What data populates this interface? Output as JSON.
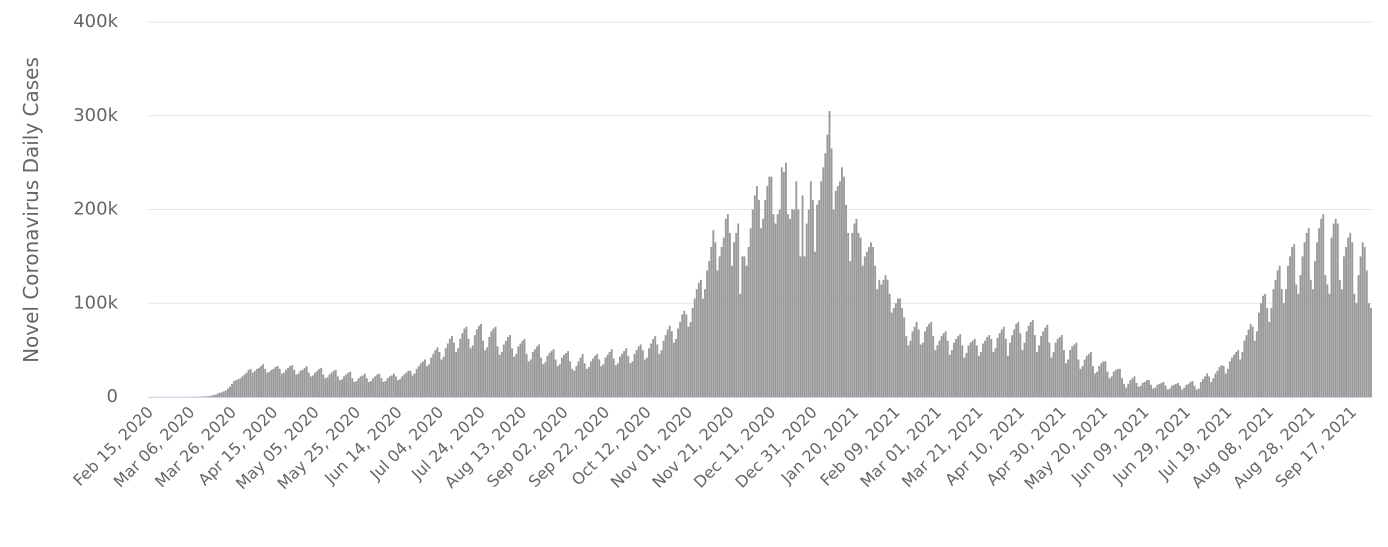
{
  "chart_data": {
    "type": "bar",
    "y_label": "Novel Coronavirus Daily Cases",
    "ylim": [
      0,
      400000
    ],
    "yticks": [
      0,
      {
        "value": 100000,
        "label": "100k"
      },
      {
        "value": 200000,
        "label": "200k"
      },
      {
        "value": 300000,
        "label": "300k"
      },
      {
        "value": 400000,
        "label": "400k"
      }
    ],
    "grid": true,
    "color": "#999999",
    "categories": [
      "Feb 15, 2020",
      null,
      null,
      null,
      null,
      null,
      null,
      null,
      null,
      null,
      null,
      null,
      null,
      null,
      null,
      null,
      null,
      null,
      null,
      null,
      "Mar 06, 2020",
      null,
      null,
      null,
      null,
      null,
      null,
      null,
      null,
      null,
      null,
      null,
      null,
      null,
      null,
      null,
      null,
      null,
      null,
      null,
      "Mar 26, 2020",
      null,
      null,
      null,
      null,
      null,
      null,
      null,
      null,
      null,
      null,
      null,
      null,
      null,
      null,
      null,
      null,
      null,
      null,
      null,
      "Apr 15, 2020",
      null,
      null,
      null,
      null,
      null,
      null,
      null,
      null,
      null,
      null,
      null,
      null,
      null,
      null,
      null,
      null,
      null,
      null,
      null,
      "May 05, 2020",
      null,
      null,
      null,
      null,
      null,
      null,
      null,
      null,
      null,
      null,
      null,
      null,
      null,
      null,
      null,
      null,
      null,
      null,
      null,
      "May 25, 2020",
      null,
      null,
      null,
      null,
      null,
      null,
      null,
      null,
      null,
      null,
      null,
      null,
      null,
      null,
      null,
      null,
      null,
      null,
      null,
      "Jun 14, 2020",
      null,
      null,
      null,
      null,
      null,
      null,
      null,
      null,
      null,
      null,
      null,
      null,
      null,
      null,
      null,
      null,
      null,
      null,
      null,
      "Jul 04, 2020",
      null,
      null,
      null,
      null,
      null,
      null,
      null,
      null,
      null,
      null,
      null,
      null,
      null,
      null,
      null,
      null,
      null,
      null,
      null,
      "Jul 24, 2020",
      null,
      null,
      null,
      null,
      null,
      null,
      null,
      null,
      null,
      null,
      null,
      null,
      null,
      null,
      null,
      null,
      null,
      null,
      null,
      "Aug 13, 2020",
      null,
      null,
      null,
      null,
      null,
      null,
      null,
      null,
      null,
      null,
      null,
      null,
      null,
      null,
      null,
      null,
      null,
      null,
      null,
      "Sep 02, 2020",
      null,
      null,
      null,
      null,
      null,
      null,
      null,
      null,
      null,
      null,
      null,
      null,
      null,
      null,
      null,
      null,
      null,
      null,
      null,
      "Sep 22, 2020",
      null,
      null,
      null,
      null,
      null,
      null,
      null,
      null,
      null,
      null,
      null,
      null,
      null,
      null,
      null,
      null,
      null,
      null,
      null,
      "Oct 12, 2020",
      null,
      null,
      null,
      null,
      null,
      null,
      null,
      null,
      null,
      null,
      null,
      null,
      null,
      null,
      null,
      null,
      null,
      null,
      null,
      "Nov 01, 2020",
      null,
      null,
      null,
      null,
      null,
      null,
      null,
      null,
      null,
      null,
      null,
      null,
      null,
      null,
      null,
      null,
      null,
      null,
      null,
      "Nov 21, 2020",
      null,
      null,
      null,
      null,
      null,
      null,
      null,
      null,
      null,
      null,
      null,
      null,
      null,
      null,
      null,
      null,
      null,
      null,
      null,
      "Dec 11, 2020",
      null,
      null,
      null,
      null,
      null,
      null,
      null,
      null,
      null,
      null,
      null,
      null,
      null,
      null,
      null,
      null,
      null,
      null,
      null,
      "Dec 31, 2020",
      null,
      null,
      null,
      null,
      null,
      null,
      null,
      null,
      null,
      null,
      null,
      null,
      null,
      null,
      null,
      null,
      null,
      null,
      null,
      "Jan 20, 2021",
      null,
      null,
      null,
      null,
      null,
      null,
      null,
      null,
      null,
      null,
      null,
      null,
      null,
      null,
      null,
      null,
      null,
      null,
      null,
      "Feb 09, 2021",
      null,
      null,
      null,
      null,
      null,
      null,
      null,
      null,
      null,
      null,
      null,
      null,
      null,
      null,
      null,
      null,
      null,
      null,
      null,
      "Mar 01, 2021",
      null,
      null,
      null,
      null,
      null,
      null,
      null,
      null,
      null,
      null,
      null,
      null,
      null,
      null,
      null,
      null,
      null,
      null,
      null,
      "Mar 21, 2021",
      null,
      null,
      null,
      null,
      null,
      null,
      null,
      null,
      null,
      null,
      null,
      null,
      null,
      null,
      null,
      null,
      null,
      null,
      null,
      "Apr 10, 2021",
      null,
      null,
      null,
      null,
      null,
      null,
      null,
      null,
      null,
      null,
      null,
      null,
      null,
      null,
      null,
      null,
      null,
      null,
      null,
      "Apr 30, 2021",
      null,
      null,
      null,
      null,
      null,
      null,
      null,
      null,
      null,
      null,
      null,
      null,
      null,
      null,
      null,
      null,
      null,
      null,
      null,
      "May 20, 2021",
      null,
      null,
      null,
      null,
      null,
      null,
      null,
      null,
      null,
      null,
      null,
      null,
      null,
      null,
      null,
      null,
      null,
      null,
      null,
      "Jun 09, 2021",
      null,
      null,
      null,
      null,
      null,
      null,
      null,
      null,
      null,
      null,
      null,
      null,
      null,
      null,
      null,
      null,
      null,
      null,
      null,
      "Jun 29, 2021",
      null,
      null,
      null,
      null,
      null,
      null,
      null,
      null,
      null,
      null,
      null,
      null,
      null,
      null,
      null,
      null,
      null,
      null,
      null,
      "Jul 19, 2021",
      null,
      null,
      null,
      null,
      null,
      null,
      null,
      null,
      null,
      null,
      null,
      null,
      null,
      null,
      null,
      null,
      null,
      null,
      null,
      "Aug 08, 2021",
      null,
      null,
      null,
      null,
      null,
      null,
      null,
      null,
      null,
      null,
      null,
      null,
      null,
      null,
      null,
      null,
      null,
      null,
      null,
      "Aug 28, 2021",
      null,
      null,
      null,
      null,
      null,
      null,
      null,
      null,
      null,
      null,
      null,
      null,
      null,
      null,
      null,
      null,
      null,
      null,
      null,
      "Sep 17, 2021",
      null,
      null,
      null,
      null,
      null,
      null,
      null,
      null,
      null
    ],
    "values": [
      0,
      0,
      0,
      0,
      0,
      0,
      0,
      0,
      0,
      0,
      0,
      0,
      0,
      0,
      0,
      0,
      0,
      0,
      0,
      0,
      0,
      100,
      200,
      200,
      300,
      400,
      500,
      600,
      800,
      1000,
      1500,
      2000,
      2500,
      3500,
      4500,
      5000,
      6000,
      7000,
      9000,
      11000,
      14000,
      17000,
      18000,
      19000,
      20000,
      22000,
      24000,
      26000,
      29000,
      30000,
      26000,
      28000,
      30000,
      31000,
      33000,
      35000,
      30000,
      26000,
      27000,
      29000,
      30000,
      32000,
      33000,
      30000,
      25000,
      26000,
      29000,
      31000,
      33000,
      34000,
      29000,
      24000,
      25000,
      28000,
      29000,
      31000,
      33000,
      26000,
      22000,
      23000,
      26000,
      28000,
      30000,
      31000,
      24000,
      20000,
      21000,
      24000,
      26000,
      28000,
      29000,
      22000,
      18000,
      19000,
      22000,
      24000,
      26000,
      27000,
      20000,
      16000,
      17000,
      20000,
      22000,
      23000,
      25000,
      20000,
      16000,
      17000,
      20000,
      22000,
      24000,
      25000,
      20000,
      16000,
      17000,
      20000,
      22000,
      23000,
      25000,
      22000,
      18000,
      19000,
      22000,
      24000,
      26000,
      28000,
      28000,
      23000,
      25000,
      30000,
      33000,
      36000,
      38000,
      40000,
      33000,
      35000,
      42000,
      46000,
      50000,
      53000,
      48000,
      40000,
      43000,
      52000,
      57000,
      62000,
      65000,
      58000,
      48000,
      52000,
      62000,
      68000,
      73000,
      75000,
      62000,
      52000,
      55000,
      66000,
      72000,
      76000,
      78000,
      60000,
      50000,
      53000,
      64000,
      70000,
      73000,
      75000,
      54000,
      45000,
      48000,
      56000,
      60000,
      64000,
      66000,
      52000,
      43000,
      46000,
      54000,
      57000,
      60000,
      62000,
      46000,
      38000,
      40000,
      48000,
      51000,
      54000,
      56000,
      42000,
      35000,
      37000,
      44000,
      47000,
      49000,
      51000,
      40000,
      33000,
      35000,
      42000,
      45000,
      47000,
      49000,
      38000,
      30000,
      28000,
      33000,
      38000,
      42000,
      46000,
      36000,
      30000,
      32000,
      38000,
      41000,
      44000,
      46000,
      40000,
      33000,
      35000,
      42000,
      45000,
      48000,
      51000,
      41000,
      34000,
      36000,
      43000,
      46000,
      49000,
      52000,
      44000,
      36000,
      38000,
      46000,
      50000,
      54000,
      56000,
      50000,
      40000,
      42000,
      52000,
      57000,
      62000,
      65000,
      56000,
      46000,
      50000,
      60000,
      66000,
      72000,
      76000,
      70000,
      58000,
      62000,
      73000,
      80000,
      88000,
      92000,
      88000,
      75000,
      80000,
      95000,
      105000,
      115000,
      122000,
      125000,
      105000,
      115000,
      135000,
      145000,
      160000,
      178000,
      165000,
      135000,
      150000,
      160000,
      170000,
      190000,
      195000,
      175000,
      140000,
      165000,
      175000,
      185000,
      110000,
      150000,
      150000,
      140000,
      160000,
      180000,
      200000,
      215000,
      225000,
      210000,
      180000,
      190000,
      210000,
      225000,
      235000,
      235000,
      195000,
      185000,
      195000,
      200000,
      245000,
      240000,
      250000,
      195000,
      190000,
      200000,
      200000,
      230000,
      200000,
      150000,
      215000,
      150000,
      185000,
      200000,
      230000,
      210000,
      155000,
      205000,
      210000,
      230000,
      245000,
      260000,
      280000,
      305000,
      265000,
      200000,
      220000,
      225000,
      230000,
      245000,
      235000,
      205000,
      175000,
      145000,
      175000,
      185000,
      190000,
      175000,
      170000,
      140000,
      150000,
      155000,
      160000,
      165000,
      160000,
      140000,
      115000,
      125000,
      120000,
      125000,
      130000,
      125000,
      110000,
      90000,
      95000,
      100000,
      105000,
      105000,
      95000,
      85000,
      65000,
      55000,
      60000,
      70000,
      75000,
      80000,
      72000,
      56000,
      58000,
      70000,
      75000,
      78000,
      80000,
      65000,
      50000,
      55000,
      60000,
      65000,
      68000,
      70000,
      60000,
      45000,
      50000,
      58000,
      62000,
      65000,
      67000,
      55000,
      42000,
      47000,
      55000,
      58000,
      60000,
      62000,
      55000,
      44000,
      48000,
      57000,
      60000,
      64000,
      66000,
      62000,
      48000,
      52000,
      63000,
      68000,
      72000,
      75000,
      62000,
      44000,
      58000,
      66000,
      72000,
      78000,
      80000,
      68000,
      50000,
      58000,
      70000,
      76000,
      80000,
      82000,
      66000,
      48000,
      55000,
      65000,
      70000,
      74000,
      77000,
      58000,
      42000,
      48000,
      58000,
      62000,
      64000,
      66000,
      50000,
      36000,
      40000,
      50000,
      54000,
      56000,
      58000,
      40000,
      30000,
      33000,
      40000,
      44000,
      46000,
      48000,
      33000,
      25000,
      27000,
      33000,
      36000,
      38000,
      38000,
      27000,
      20000,
      22000,
      27000,
      29000,
      30000,
      30000,
      20000,
      14000,
      10000,
      14000,
      18000,
      20000,
      22000,
      15000,
      11000,
      12000,
      15000,
      16000,
      18000,
      18000,
      13000,
      9000,
      10000,
      13000,
      14000,
      15000,
      16000,
      12000,
      8000,
      9000,
      12000,
      13000,
      14000,
      15000,
      12000,
      8000,
      10000,
      13000,
      14000,
      16000,
      17000,
      12000,
      8000,
      9000,
      16000,
      19000,
      22000,
      25000,
      22000,
      16000,
      20000,
      25000,
      28000,
      32000,
      34000,
      33000,
      25000,
      30000,
      38000,
      42000,
      45000,
      48000,
      50000,
      40000,
      48000,
      60000,
      66000,
      72000,
      78000,
      75000,
      60000,
      70000,
      90000,
      100000,
      108000,
      110000,
      95000,
      80000,
      95000,
      115000,
      125000,
      135000,
      140000,
      115000,
      100000,
      115000,
      140000,
      150000,
      160000,
      163000,
      120000,
      110000,
      130000,
      150000,
      165000,
      175000,
      180000,
      125000,
      115000,
      145000,
      165000,
      180000,
      190000,
      195000,
      130000,
      120000,
      110000,
      170000,
      185000,
      190000,
      185000,
      125000,
      115000,
      150000,
      160000,
      170000,
      175000,
      165000,
      110000,
      100000,
      130000,
      150000,
      165000,
      160000,
      135000,
      100000,
      95000
    ]
  }
}
